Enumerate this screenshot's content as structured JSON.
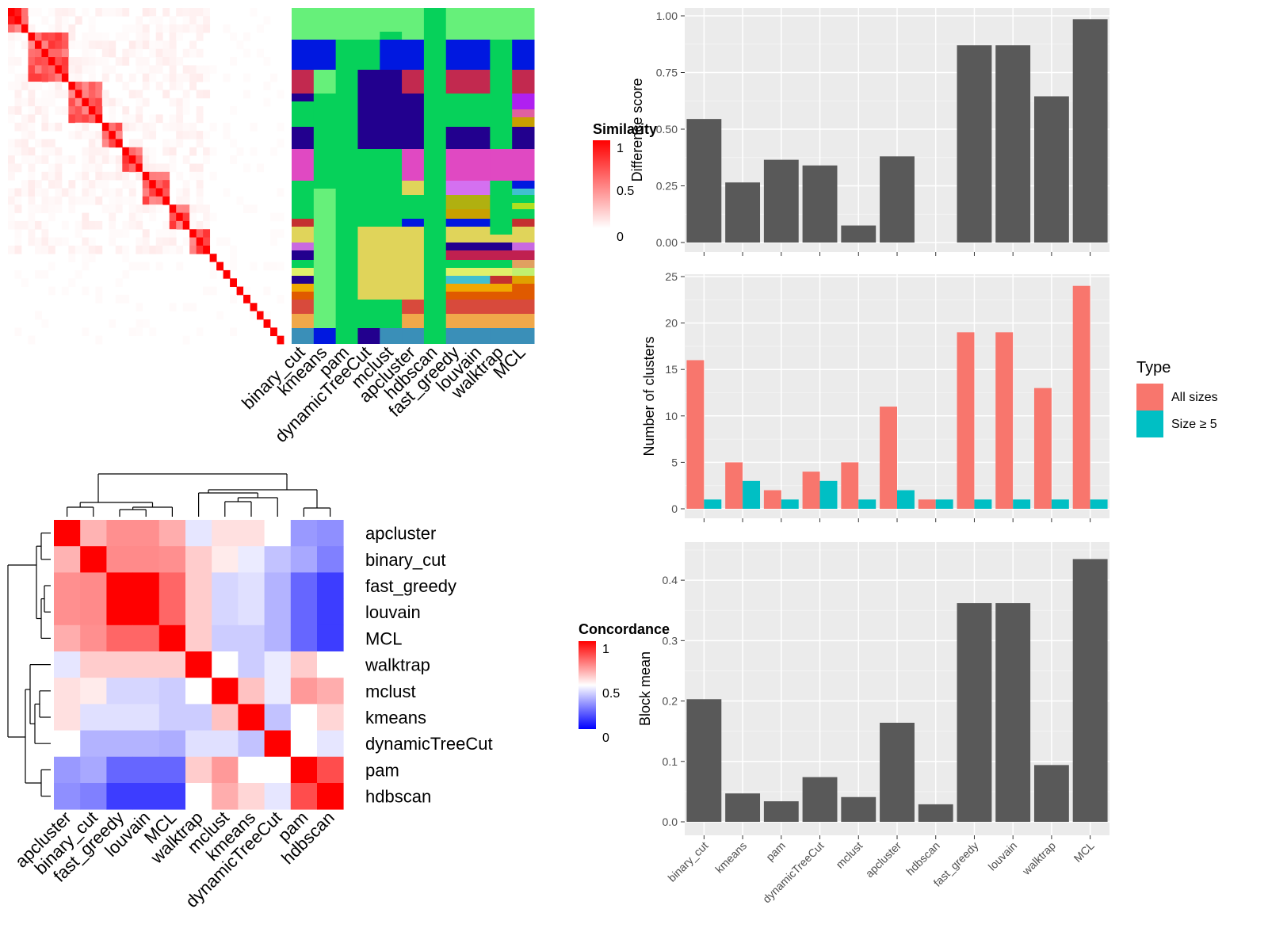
{
  "methods": [
    "binary_cut",
    "kmeans",
    "pam",
    "dynamicTreeCut",
    "mclust",
    "apcluster",
    "hdbscan",
    "fast_greedy",
    "louvain",
    "walktrap",
    "MCL"
  ],
  "similarity_legend": {
    "title": "Similarity",
    "ticks": [
      "1",
      "0.5",
      "0"
    ]
  },
  "concordance_legend": {
    "title": "Concordance",
    "ticks": [
      "1",
      "0.5",
      "0"
    ]
  },
  "colors": {
    "bar": "#595959",
    "panel": "#ebebeb",
    "all_sizes": "#F8766D",
    "size5": "#00BFC4"
  },
  "chart_data": [
    {
      "type": "heatmap",
      "name": "similarity",
      "n": 41,
      "colorscale": [
        "#ffffff",
        "#ff0000"
      ],
      "range": [
        0,
        1
      ],
      "note_values": "diagonal 1, off-diagonal near 0"
    },
    {
      "type": "heatmap",
      "name": "cluster_assignment",
      "columns": [
        "binary_cut",
        "kmeans",
        "pam",
        "dynamicTreeCut",
        "mclust",
        "apcluster",
        "hdbscan",
        "fast_greedy",
        "louvain",
        "walktrap",
        "MCL"
      ]
    },
    {
      "type": "heatmap",
      "name": "concordance",
      "rows": [
        "apcluster",
        "binary_cut",
        "fast_greedy",
        "louvain",
        "MCL",
        "walktrap",
        "mclust",
        "kmeans",
        "dynamicTreeCut",
        "pam",
        "hdbscan"
      ],
      "cols": [
        "apcluster",
        "binary_cut",
        "fast_greedy",
        "louvain",
        "MCL",
        "walktrap",
        "mclust",
        "kmeans",
        "dynamicTreeCut",
        "pam",
        "hdbscan"
      ],
      "range": [
        0,
        1
      ],
      "values": [
        [
          1.0,
          0.65,
          0.72,
          0.72,
          0.66,
          0.45,
          0.56,
          0.56,
          0.5,
          0.3,
          0.28
        ],
        [
          0.65,
          1.0,
          0.73,
          0.73,
          0.72,
          0.6,
          0.54,
          0.46,
          0.38,
          0.33,
          0.25
        ],
        [
          0.72,
          0.73,
          1.0,
          1.0,
          0.8,
          0.6,
          0.42,
          0.44,
          0.35,
          0.2,
          0.12
        ],
        [
          0.72,
          0.73,
          1.0,
          1.0,
          0.8,
          0.6,
          0.42,
          0.44,
          0.35,
          0.2,
          0.12
        ],
        [
          0.66,
          0.72,
          0.8,
          0.8,
          1.0,
          0.6,
          0.4,
          0.4,
          0.35,
          0.2,
          0.12
        ],
        [
          0.45,
          0.6,
          0.6,
          0.6,
          0.6,
          1.0,
          0.5,
          0.4,
          0.46,
          0.6,
          0.5
        ],
        [
          0.56,
          0.54,
          0.42,
          0.42,
          0.4,
          0.5,
          1.0,
          0.62,
          0.46,
          0.7,
          0.66
        ],
        [
          0.56,
          0.44,
          0.44,
          0.44,
          0.4,
          0.4,
          0.62,
          1.0,
          0.38,
          0.5,
          0.58
        ],
        [
          0.5,
          0.35,
          0.35,
          0.35,
          0.34,
          0.44,
          0.44,
          0.38,
          1.0,
          0.5,
          0.45
        ],
        [
          0.3,
          0.33,
          0.2,
          0.2,
          0.2,
          0.6,
          0.7,
          0.5,
          0.5,
          1.0,
          0.85
        ],
        [
          0.28,
          0.25,
          0.12,
          0.12,
          0.12,
          0.5,
          0.66,
          0.58,
          0.45,
          0.85,
          1.0
        ]
      ]
    },
    {
      "type": "bar",
      "name": "difference_score",
      "categories": [
        "binary_cut",
        "kmeans",
        "pam",
        "dynamicTreeCut",
        "mclust",
        "apcluster",
        "hdbscan",
        "fast_greedy",
        "louvain",
        "walktrap",
        "MCL"
      ],
      "values": [
        0.545,
        0.265,
        0.365,
        0.34,
        0.075,
        0.38,
        0.0,
        0.87,
        0.87,
        0.645,
        0.985
      ],
      "ylabel": "Difference score",
      "ylim": [
        0,
        1.0
      ],
      "yticks": [
        "0.00",
        "0.25",
        "0.50",
        "0.75",
        "1.00"
      ],
      "ytick_values": [
        0,
        0.25,
        0.5,
        0.75,
        1.0
      ]
    },
    {
      "type": "bar",
      "name": "number_of_clusters",
      "categories": [
        "binary_cut",
        "kmeans",
        "pam",
        "dynamicTreeCut",
        "mclust",
        "apcluster",
        "hdbscan",
        "fast_greedy",
        "louvain",
        "walktrap",
        "MCL"
      ],
      "series": [
        {
          "name": "All sizes",
          "values": [
            16,
            5,
            2,
            4,
            5,
            11,
            1,
            19,
            19,
            13,
            24
          ]
        },
        {
          "name": "Size ≥ 5",
          "values": [
            1,
            3,
            1,
            3,
            1,
            2,
            1,
            1,
            1,
            1,
            1
          ]
        }
      ],
      "ylabel": "Number of clusters",
      "ylim": [
        0,
        25
      ],
      "yticks": [
        "0",
        "5",
        "10",
        "15",
        "20",
        "25"
      ],
      "ytick_values": [
        0,
        5,
        10,
        15,
        20,
        25
      ],
      "legend_title": "Type",
      "legend_position": "right"
    },
    {
      "type": "bar",
      "name": "block_mean",
      "categories": [
        "binary_cut",
        "kmeans",
        "pam",
        "dynamicTreeCut",
        "mclust",
        "apcluster",
        "hdbscan",
        "fast_greedy",
        "louvain",
        "walktrap",
        "MCL"
      ],
      "values": [
        0.203,
        0.047,
        0.034,
        0.074,
        0.041,
        0.164,
        0.029,
        0.362,
        0.362,
        0.094,
        0.435
      ],
      "ylabel": "Block mean",
      "ylim": [
        0,
        0.45
      ],
      "yticks": [
        "0.0",
        "0.1",
        "0.2",
        "0.3",
        "0.4"
      ],
      "ytick_values": [
        0,
        0.1,
        0.2,
        0.3,
        0.4
      ]
    }
  ]
}
